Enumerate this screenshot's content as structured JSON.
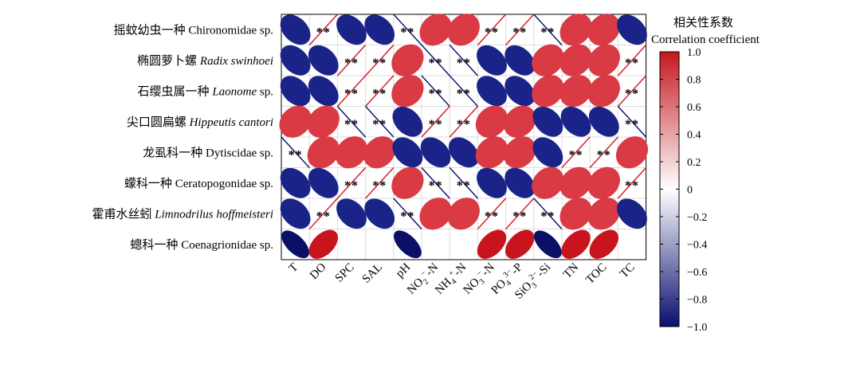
{
  "chart_data": {
    "type": "heatmap",
    "legend": {
      "title_cn": "相关性系数",
      "title_en": "Correlation coefficient",
      "ticks": [
        "1.0",
        "0.8",
        "0.6",
        "0.4",
        "0.2",
        "0",
        "−0.2",
        "−0.4",
        "−0.6",
        "−0.8",
        "−1.0"
      ],
      "range": [
        -1,
        1
      ],
      "color_pos": "#c4181f",
      "color_neg": "#1c2a8c",
      "color_mid": "#ffffff"
    },
    "significance_mark": "**",
    "rows": [
      {
        "cn": "摇蚊幼虫一种",
        "latin": "Chironomidae sp.",
        "italic": false
      },
      {
        "cn": "椭圆萝卜螺",
        "latin": "Radix swinhoei",
        "italic": true
      },
      {
        "cn": "石缨虫属一种",
        "latin": "Laonome",
        "italic": true,
        "suffix": "sp."
      },
      {
        "cn": "尖口圆扁螺",
        "latin": "Hippeutis cantori",
        "italic": true
      },
      {
        "cn": "龙虱科一种",
        "latin": "Dytiscidae sp.",
        "italic": false
      },
      {
        "cn": "蠓科一种",
        "latin": "Ceratopogonidae sp.",
        "italic": false
      },
      {
        "cn": "霍甫水丝蚓",
        "latin": "Limnodrilus hoffmeisteri",
        "italic": true
      },
      {
        "cn": "蟌科一种",
        "latin": "Coenagrionidae sp.",
        "italic": false
      }
    ],
    "columns": [
      {
        "base": "T"
      },
      {
        "base": "DO"
      },
      {
        "base": "SPC"
      },
      {
        "base": "SAL"
      },
      {
        "base": "pH"
      },
      {
        "base": "NO",
        "sub": "2",
        "sup": "−",
        "tail": "-N"
      },
      {
        "base": "NH",
        "sub": "4",
        "sup": "+",
        "tail": "-N"
      },
      {
        "base": "NO",
        "sub": "3",
        "sup": "−",
        "tail": "-N"
      },
      {
        "base": "PO",
        "sub": "4",
        "sup": "3−",
        "tail": "-P"
      },
      {
        "base": "SiO",
        "sub": "3",
        "sup": "2−",
        "tail": "-Si"
      },
      {
        "base": "TN"
      },
      {
        "base": "TOC"
      },
      {
        "base": "TC"
      }
    ],
    "values": [
      [
        -0.8,
        1.0,
        -0.8,
        -0.8,
        -1.0,
        0.7,
        0.7,
        1.0,
        1.0,
        -1.0,
        0.7,
        0.7,
        -0.8
      ],
      [
        -0.8,
        -0.8,
        1.0,
        1.0,
        0.7,
        -1.0,
        -1.0,
        -0.8,
        -0.8,
        0.7,
        0.7,
        0.7,
        1.0
      ],
      [
        -0.8,
        -0.8,
        1.0,
        1.0,
        0.7,
        -1.0,
        -1.0,
        -0.8,
        -0.8,
        0.7,
        0.7,
        0.7,
        1.0
      ],
      [
        0.7,
        0.7,
        -1.0,
        -1.0,
        -0.8,
        1.0,
        1.0,
        0.7,
        0.7,
        -0.8,
        -0.8,
        -0.8,
        -1.0
      ],
      [
        -1.0,
        0.7,
        0.7,
        0.7,
        -0.8,
        -0.8,
        -0.8,
        0.7,
        0.7,
        -0.8,
        1.0,
        1.0,
        0.7
      ],
      [
        -0.8,
        -0.8,
        1.0,
        1.0,
        0.7,
        -1.0,
        -1.0,
        -0.8,
        -0.8,
        0.7,
        0.7,
        0.7,
        1.0
      ],
      [
        -0.8,
        1.0,
        -0.8,
        -0.8,
        -1.0,
        0.7,
        0.7,
        1.0,
        1.0,
        -1.0,
        0.7,
        0.7,
        -0.8
      ],
      [
        -0.9,
        0.85,
        null,
        null,
        -0.9,
        null,
        null,
        0.85,
        0.85,
        -0.9,
        0.85,
        0.85,
        null
      ]
    ],
    "significant": [
      [
        false,
        true,
        false,
        false,
        true,
        false,
        false,
        true,
        true,
        true,
        false,
        false,
        false
      ],
      [
        false,
        false,
        true,
        true,
        false,
        true,
        true,
        false,
        false,
        false,
        false,
        false,
        true
      ],
      [
        false,
        false,
        true,
        true,
        false,
        true,
        true,
        false,
        false,
        false,
        false,
        false,
        true
      ],
      [
        false,
        false,
        true,
        true,
        false,
        true,
        true,
        false,
        false,
        false,
        false,
        false,
        true
      ],
      [
        true,
        false,
        false,
        false,
        false,
        false,
        false,
        false,
        false,
        false,
        true,
        true,
        false
      ],
      [
        false,
        false,
        true,
        true,
        false,
        true,
        true,
        false,
        false,
        false,
        false,
        false,
        true
      ],
      [
        false,
        true,
        false,
        false,
        true,
        false,
        false,
        true,
        true,
        true,
        false,
        false,
        false
      ],
      [
        false,
        false,
        false,
        false,
        false,
        false,
        false,
        false,
        false,
        false,
        false,
        false,
        false
      ]
    ]
  }
}
